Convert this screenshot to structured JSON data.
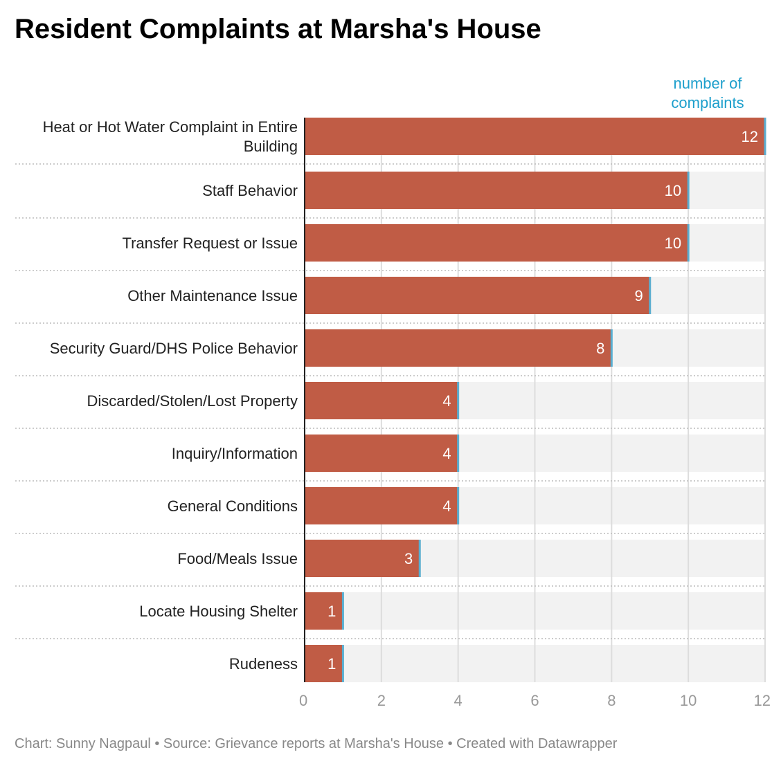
{
  "title": "Resident Complaints at Marsha's House",
  "footer": "Chart: Sunny Nagpaul • Source: Grievance reports at Marsha's House • Created with Datawrapper",
  "chart_data": {
    "type": "bar",
    "orientation": "horizontal",
    "title": "Resident Complaints at Marsha's House",
    "value_axis_label": [
      "number of",
      "complaints"
    ],
    "categories": [
      [
        "Heat or Hot Water Complaint in Entire",
        "Building"
      ],
      [
        "Staff Behavior"
      ],
      [
        "Transfer Request or Issue"
      ],
      [
        "Other Maintenance Issue"
      ],
      [
        "Security Guard/DHS Police Behavior"
      ],
      [
        "Discarded/Stolen/Lost Property"
      ],
      [
        "Inquiry/Information"
      ],
      [
        "General Conditions"
      ],
      [
        "Food/Meals Issue"
      ],
      [
        "Locate Housing Shelter"
      ],
      [
        "Rudeness"
      ]
    ],
    "values": [
      12,
      10,
      10,
      9,
      8,
      4,
      4,
      4,
      3,
      1,
      1
    ],
    "xlim": [
      0,
      12
    ],
    "ticks": [
      0,
      2,
      4,
      6,
      8,
      10,
      12
    ],
    "grid": true,
    "colors": {
      "bar": "#c05c45",
      "track": "#f2f2f2",
      "marker": "#5aaed0",
      "axis_title": "#1d9fcc"
    }
  }
}
